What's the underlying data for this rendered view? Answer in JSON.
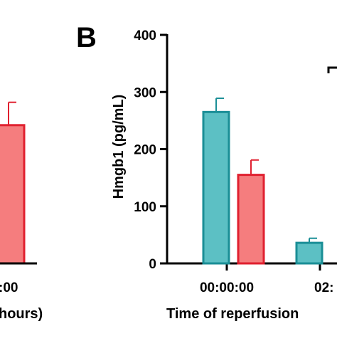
{
  "panel_letter": "B",
  "left_fragment": {
    "tick_label": ":00",
    "axis_label_fragment": "hours)",
    "bar_value": 242,
    "bar_error": 40,
    "bar_color": "#f57d7e",
    "bar_stroke": "#e0202f"
  },
  "chart_data": {
    "type": "bar",
    "title": "",
    "xlabel": "Time of reperfusion",
    "ylabel": "Hmgb1 (pg/mL)",
    "ylim": [
      0,
      400
    ],
    "yticks": [
      0,
      100,
      200,
      300,
      400
    ],
    "categories": [
      "00:00:00",
      "02:"
    ],
    "series": [
      {
        "color": "#5cc0c4",
        "stroke": "#1a8e96",
        "values": [
          265,
          36
        ],
        "errors": [
          24,
          8
        ]
      },
      {
        "color": "#f57d7e",
        "stroke": "#e0202f",
        "values": [
          155,
          null
        ],
        "errors": [
          26,
          null
        ]
      }
    ],
    "grid": false,
    "legend": "none"
  }
}
